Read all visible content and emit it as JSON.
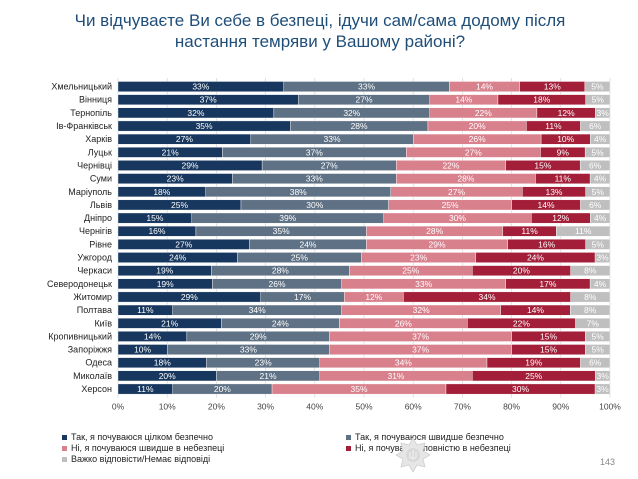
{
  "title": "Чи відчуваєте Ви себе в безпеці, ідучи сам/сама додому після настання темряви у Вашому районі?",
  "page_number": "143",
  "colors": [
    "#17375e",
    "#5f7184",
    "#d9808d",
    "#a31e38",
    "#bfbfbf"
  ],
  "chart_data": {
    "type": "bar",
    "orientation": "horizontal",
    "stacked": true,
    "title": "Чи відчуваєте Ви себе в безпеці, ідучи сам/сама додому після настання темряви у Вашому районі?",
    "xlim": [
      0,
      100
    ],
    "x_ticks": [
      "0%",
      "10%",
      "20%",
      "30%",
      "40%",
      "50%",
      "60%",
      "70%",
      "80%",
      "90%",
      "100%"
    ],
    "grid": true,
    "legend_position": "bottom",
    "categories": [
      "Хмельницький",
      "Вінниця",
      "Тернопіль",
      "Ів-Франківськ",
      "Харків",
      "Луцьк",
      "Чернівці",
      "Суми",
      "Маріуполь",
      "Львів",
      "Дніпро",
      "Чернігів",
      "Рівне",
      "Ужгород",
      "Черкаси",
      "Северодонецьк",
      "Житомир",
      "Полтава",
      "Київ",
      "Кропивницький",
      "Запоріжжя",
      "Одеса",
      "Миколаїв",
      "Херсон"
    ],
    "series": [
      {
        "name": "Так, я почуваюся цілком безпечно",
        "values": [
          33,
          37,
          32,
          35,
          27,
          21,
          29,
          23,
          18,
          25,
          15,
          16,
          27,
          24,
          19,
          19,
          29,
          11,
          21,
          14,
          10,
          18,
          20,
          11
        ]
      },
      {
        "name": "Так, я почуваюся швидше безпечно",
        "values": [
          33,
          27,
          32,
          28,
          33,
          37,
          27,
          33,
          38,
          30,
          39,
          35,
          24,
          25,
          28,
          26,
          17,
          34,
          24,
          29,
          33,
          23,
          21,
          20
        ]
      },
      {
        "name": "Ні, я почуваюся швидше в небезпеці",
        "values": [
          14,
          14,
          22,
          20,
          26,
          27,
          22,
          28,
          27,
          25,
          30,
          28,
          29,
          23,
          25,
          33,
          12,
          32,
          26,
          37,
          37,
          34,
          31,
          35
        ]
      },
      {
        "name": "Ні, я почуваюся повністю в небезпеці",
        "values": [
          13,
          18,
          12,
          11,
          10,
          9,
          15,
          11,
          13,
          14,
          12,
          11,
          16,
          24,
          20,
          17,
          34,
          14,
          22,
          15,
          15,
          19,
          25,
          30
        ]
      },
      {
        "name": "Важко відповісти/Немає відповіді",
        "values": [
          5,
          5,
          3,
          6,
          4,
          5,
          6,
          4,
          5,
          6,
          4,
          11,
          5,
          3,
          8,
          4,
          8,
          8,
          7,
          5,
          5,
          6,
          3,
          3
        ]
      }
    ]
  }
}
